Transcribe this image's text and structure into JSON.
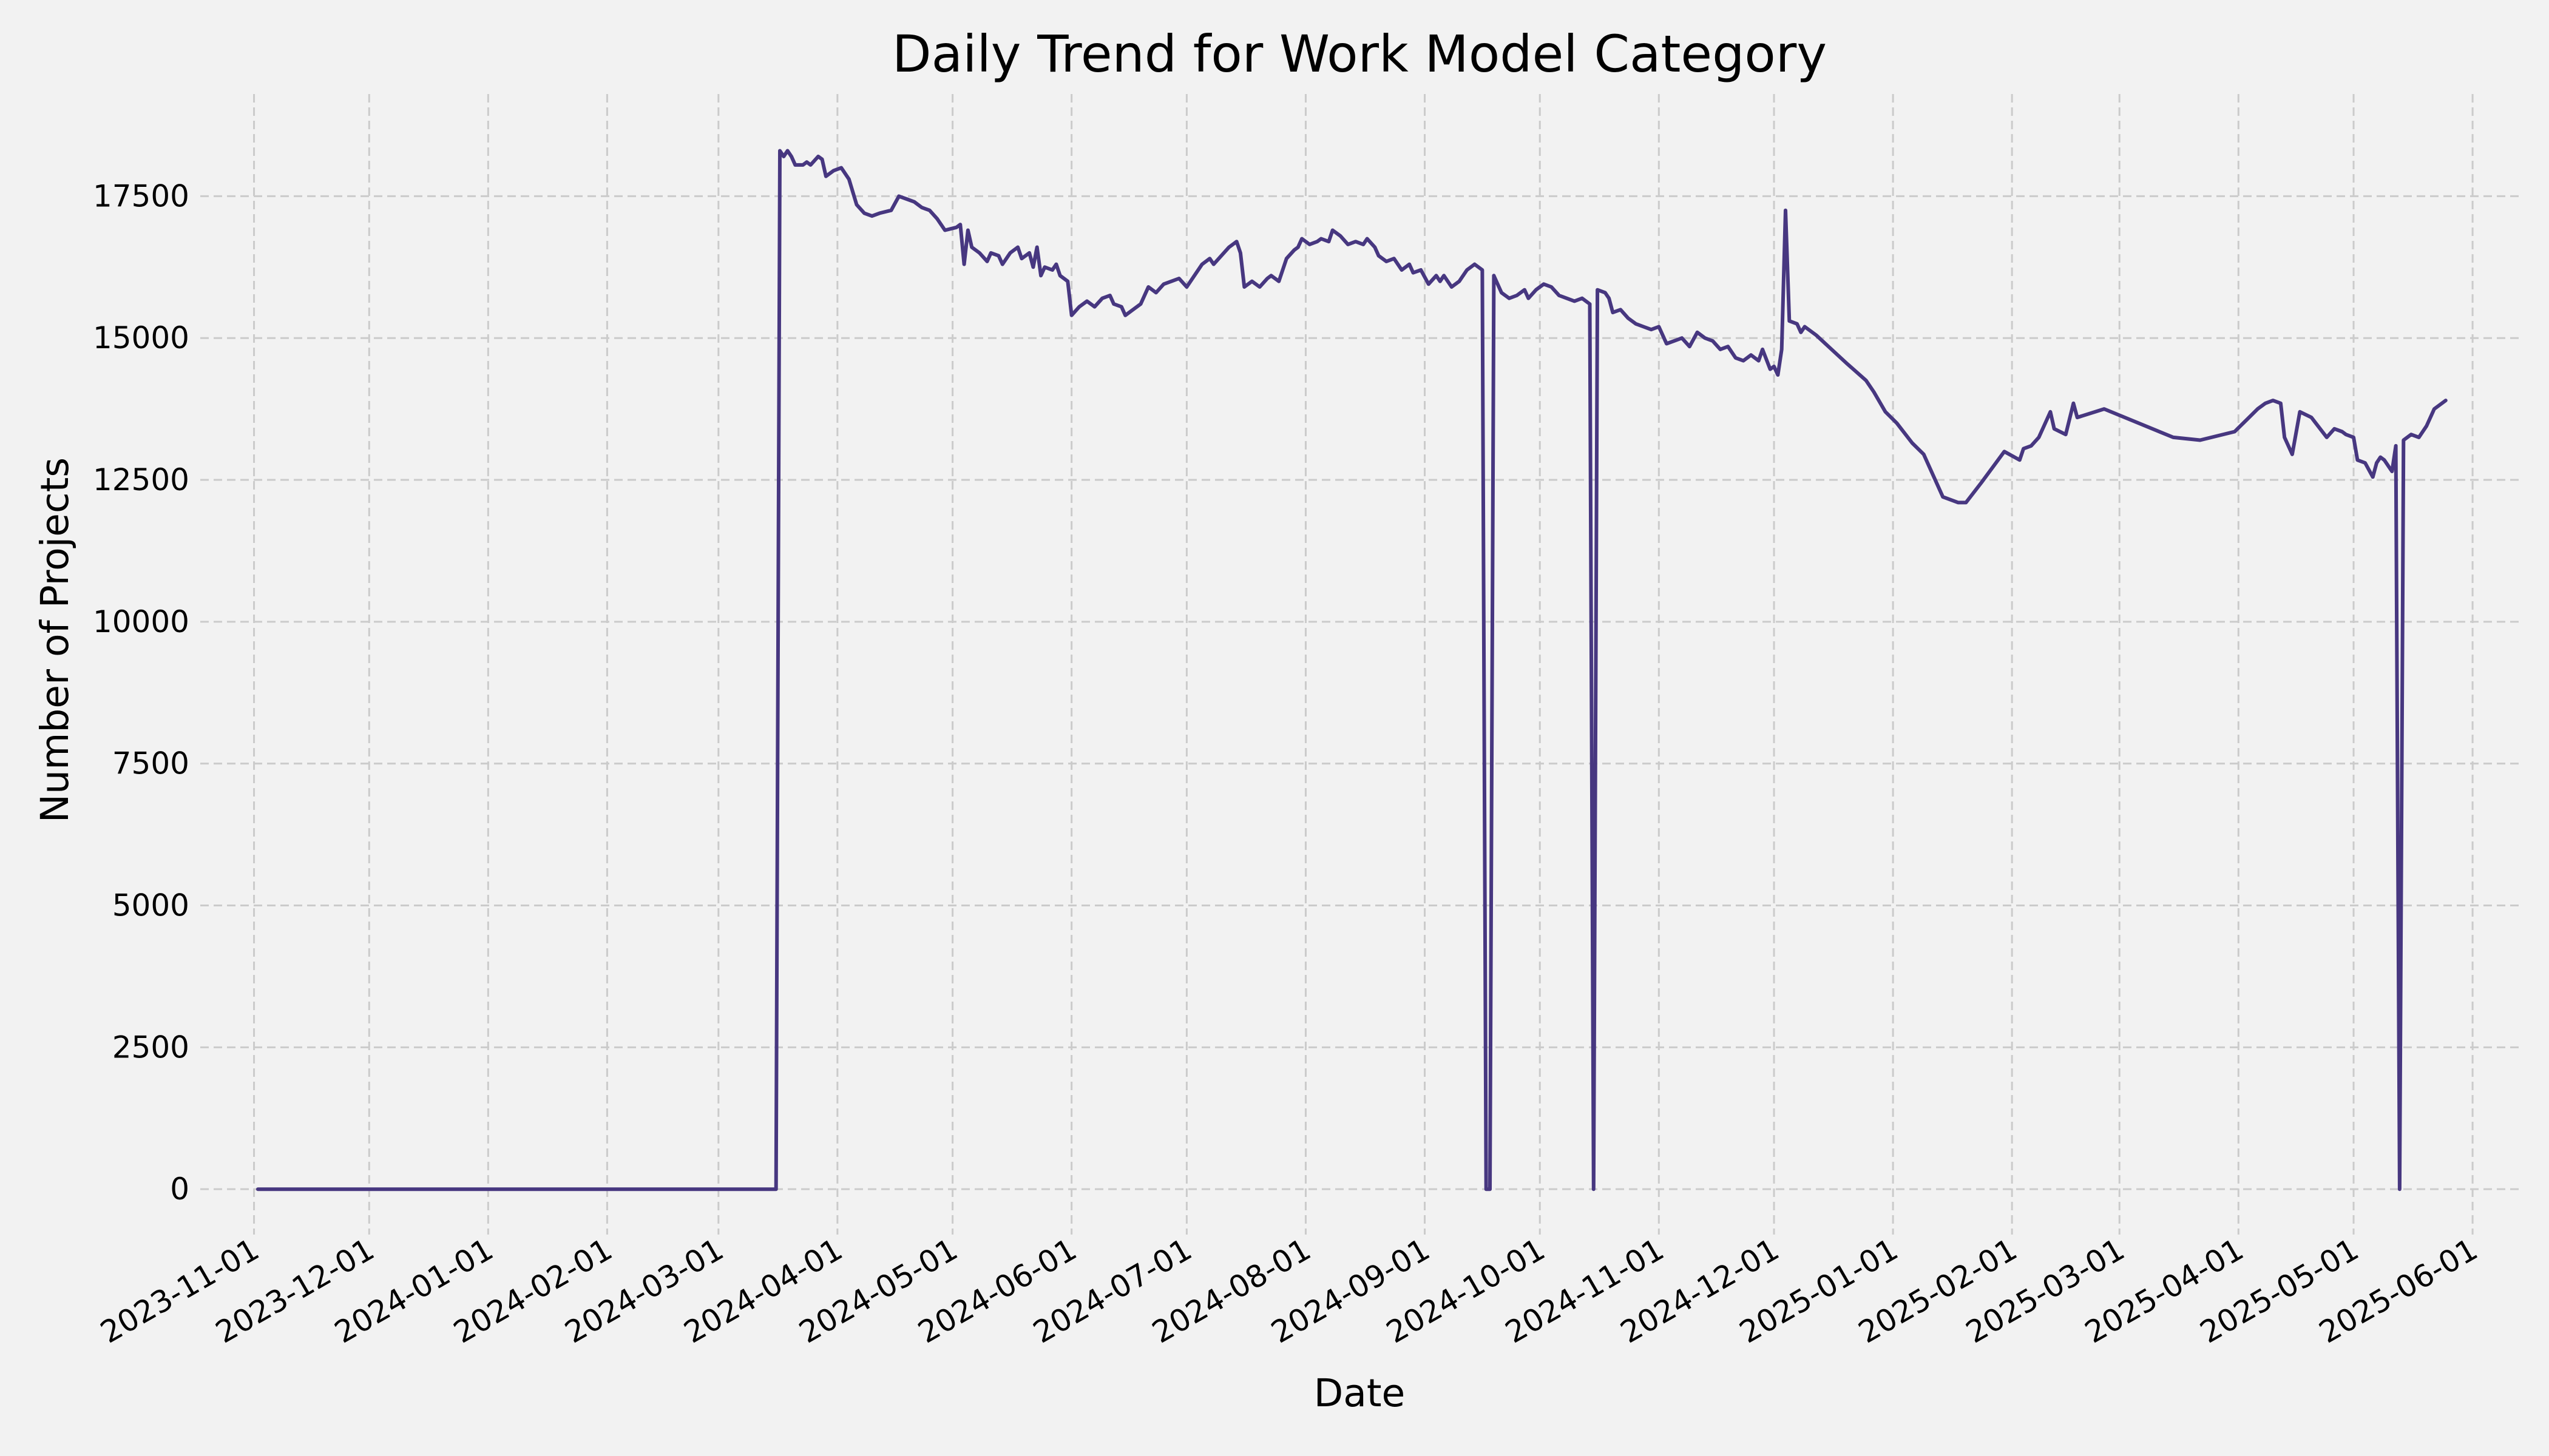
{
  "chart_data": {
    "type": "line",
    "title": "Daily Trend for Work Model Category",
    "xlabel": "Date",
    "ylabel": "Number of Projects",
    "xlim": [
      "2023-10-18",
      "2025-06-13"
    ],
    "ylim": [
      -800,
      19300
    ],
    "grid": true,
    "legend": "none",
    "x_ticks": [
      "2023-11-01",
      "2023-12-01",
      "2024-01-01",
      "2024-02-01",
      "2024-03-01",
      "2024-04-01",
      "2024-05-01",
      "2024-06-01",
      "2024-07-01",
      "2024-08-01",
      "2024-09-01",
      "2024-10-01",
      "2024-11-01",
      "2024-12-01",
      "2025-01-01",
      "2025-02-01",
      "2025-03-01",
      "2025-04-01",
      "2025-05-01",
      "2025-06-01"
    ],
    "y_ticks": [
      0,
      2500,
      5000,
      7500,
      10000,
      12500,
      15000,
      17500
    ],
    "colors": {
      "background": "#f2f2f2",
      "line": "#473780",
      "grid": "#cbcbcb"
    },
    "series": [
      {
        "points": [
          [
            "2023-11-02",
            0
          ],
          [
            "2024-03-16",
            0
          ],
          [
            "2024-03-17",
            18300
          ],
          [
            "2024-03-18",
            18200
          ],
          [
            "2024-03-19",
            18300
          ],
          [
            "2024-03-20",
            18200
          ],
          [
            "2024-03-21",
            18050
          ],
          [
            "2024-03-23",
            18050
          ],
          [
            "2024-03-24",
            18100
          ],
          [
            "2024-03-25",
            18050
          ],
          [
            "2024-03-27",
            18200
          ],
          [
            "2024-03-28",
            18150
          ],
          [
            "2024-03-29",
            17850
          ],
          [
            "2024-03-31",
            17950
          ],
          [
            "2024-04-02",
            18000
          ],
          [
            "2024-04-04",
            17800
          ],
          [
            "2024-04-06",
            17350
          ],
          [
            "2024-04-08",
            17200
          ],
          [
            "2024-04-10",
            17150
          ],
          [
            "2024-04-12",
            17200
          ],
          [
            "2024-04-15",
            17250
          ],
          [
            "2024-04-17",
            17500
          ],
          [
            "2024-04-19",
            17450
          ],
          [
            "2024-04-21",
            17400
          ],
          [
            "2024-04-23",
            17300
          ],
          [
            "2024-04-25",
            17250
          ],
          [
            "2024-04-27",
            17100
          ],
          [
            "2024-04-29",
            16900
          ],
          [
            "2024-05-02",
            16950
          ],
          [
            "2024-05-03",
            17000
          ],
          [
            "2024-05-04",
            16300
          ],
          [
            "2024-05-05",
            16900
          ],
          [
            "2024-05-06",
            16600
          ],
          [
            "2024-05-08",
            16500
          ],
          [
            "2024-05-10",
            16350
          ],
          [
            "2024-05-11",
            16500
          ],
          [
            "2024-05-13",
            16450
          ],
          [
            "2024-05-14",
            16300
          ],
          [
            "2024-05-16",
            16500
          ],
          [
            "2024-05-18",
            16600
          ],
          [
            "2024-05-19",
            16400
          ],
          [
            "2024-05-21",
            16500
          ],
          [
            "2024-05-22",
            16250
          ],
          [
            "2024-05-23",
            16600
          ],
          [
            "2024-05-24",
            16100
          ],
          [
            "2024-05-25",
            16250
          ],
          [
            "2024-05-27",
            16200
          ],
          [
            "2024-05-28",
            16300
          ],
          [
            "2024-05-29",
            16100
          ],
          [
            "2024-05-31",
            16000
          ],
          [
            "2024-06-01",
            15400
          ],
          [
            "2024-06-03",
            15550
          ],
          [
            "2024-06-05",
            15650
          ],
          [
            "2024-06-07",
            15550
          ],
          [
            "2024-06-09",
            15700
          ],
          [
            "2024-06-11",
            15750
          ],
          [
            "2024-06-12",
            15600
          ],
          [
            "2024-06-14",
            15550
          ],
          [
            "2024-06-15",
            15400
          ],
          [
            "2024-06-17",
            15500
          ],
          [
            "2024-06-19",
            15600
          ],
          [
            "2024-06-21",
            15900
          ],
          [
            "2024-06-23",
            15800
          ],
          [
            "2024-06-25",
            15950
          ],
          [
            "2024-06-27",
            16000
          ],
          [
            "2024-06-29",
            16050
          ],
          [
            "2024-07-01",
            15900
          ],
          [
            "2024-07-03",
            16100
          ],
          [
            "2024-07-05",
            16300
          ],
          [
            "2024-07-07",
            16400
          ],
          [
            "2024-07-08",
            16300
          ],
          [
            "2024-07-10",
            16450
          ],
          [
            "2024-07-12",
            16600
          ],
          [
            "2024-07-14",
            16700
          ],
          [
            "2024-07-15",
            16500
          ],
          [
            "2024-07-16",
            15900
          ],
          [
            "2024-07-18",
            16000
          ],
          [
            "2024-07-20",
            15900
          ],
          [
            "2024-07-22",
            16050
          ],
          [
            "2024-07-23",
            16100
          ],
          [
            "2024-07-25",
            16000
          ],
          [
            "2024-07-27",
            16400
          ],
          [
            "2024-07-29",
            16550
          ],
          [
            "2024-07-30",
            16600
          ],
          [
            "2024-07-31",
            16750
          ],
          [
            "2024-08-02",
            16650
          ],
          [
            "2024-08-04",
            16700
          ],
          [
            "2024-08-05",
            16750
          ],
          [
            "2024-08-07",
            16700
          ],
          [
            "2024-08-08",
            16900
          ],
          [
            "2024-08-10",
            16800
          ],
          [
            "2024-08-12",
            16650
          ],
          [
            "2024-08-14",
            16700
          ],
          [
            "2024-08-16",
            16650
          ],
          [
            "2024-08-17",
            16750
          ],
          [
            "2024-08-19",
            16600
          ],
          [
            "2024-08-20",
            16450
          ],
          [
            "2024-08-22",
            16350
          ],
          [
            "2024-08-24",
            16400
          ],
          [
            "2024-08-26",
            16200
          ],
          [
            "2024-08-28",
            16300
          ],
          [
            "2024-08-29",
            16150
          ],
          [
            "2024-08-31",
            16200
          ],
          [
            "2024-09-02",
            15950
          ],
          [
            "2024-09-04",
            16100
          ],
          [
            "2024-09-05",
            16000
          ],
          [
            "2024-09-06",
            16100
          ],
          [
            "2024-09-08",
            15900
          ],
          [
            "2024-09-10",
            16000
          ],
          [
            "2024-09-12",
            16200
          ],
          [
            "2024-09-14",
            16300
          ],
          [
            "2024-09-16",
            16200
          ],
          [
            "2024-09-17",
            0
          ],
          [
            "2024-09-18",
            0
          ],
          [
            "2024-09-19",
            16100
          ],
          [
            "2024-09-21",
            15800
          ],
          [
            "2024-09-23",
            15700
          ],
          [
            "2024-09-25",
            15750
          ],
          [
            "2024-09-27",
            15850
          ],
          [
            "2024-09-28",
            15700
          ],
          [
            "2024-09-30",
            15850
          ],
          [
            "2024-10-02",
            15950
          ],
          [
            "2024-10-04",
            15900
          ],
          [
            "2024-10-06",
            15750
          ],
          [
            "2024-10-08",
            15700
          ],
          [
            "2024-10-10",
            15650
          ],
          [
            "2024-10-12",
            15700
          ],
          [
            "2024-10-14",
            15600
          ],
          [
            "2024-10-15",
            0
          ],
          [
            "2024-10-16",
            15850
          ],
          [
            "2024-10-18",
            15800
          ],
          [
            "2024-10-19",
            15700
          ],
          [
            "2024-10-20",
            15450
          ],
          [
            "2024-10-22",
            15500
          ],
          [
            "2024-10-24",
            15350
          ],
          [
            "2024-10-26",
            15250
          ],
          [
            "2024-10-28",
            15200
          ],
          [
            "2024-10-30",
            15150
          ],
          [
            "2024-11-01",
            15200
          ],
          [
            "2024-11-03",
            14900
          ],
          [
            "2024-11-05",
            14950
          ],
          [
            "2024-11-07",
            15000
          ],
          [
            "2024-11-09",
            14850
          ],
          [
            "2024-11-11",
            15100
          ],
          [
            "2024-11-13",
            15000
          ],
          [
            "2024-11-15",
            14950
          ],
          [
            "2024-11-17",
            14800
          ],
          [
            "2024-11-19",
            14850
          ],
          [
            "2024-11-21",
            14650
          ],
          [
            "2024-11-23",
            14600
          ],
          [
            "2024-11-25",
            14700
          ],
          [
            "2024-11-27",
            14600
          ],
          [
            "2024-11-28",
            14800
          ],
          [
            "2024-11-30",
            14450
          ],
          [
            "2024-12-01",
            14500
          ],
          [
            "2024-12-02",
            14350
          ],
          [
            "2024-12-03",
            14800
          ],
          [
            "2024-12-04",
            17250
          ],
          [
            "2024-12-05",
            15300
          ],
          [
            "2024-12-07",
            15250
          ],
          [
            "2024-12-08",
            15100
          ],
          [
            "2024-12-09",
            15200
          ],
          [
            "2024-12-12",
            15050
          ],
          [
            "2024-12-16",
            14800
          ],
          [
            "2024-12-20",
            14550
          ],
          [
            "2024-12-25",
            14250
          ],
          [
            "2024-12-27",
            14050
          ],
          [
            "2024-12-30",
            13700
          ],
          [
            "2025-01-02",
            13500
          ],
          [
            "2025-01-06",
            13150
          ],
          [
            "2025-01-09",
            12950
          ],
          [
            "2025-01-14",
            12200
          ],
          [
            "2025-01-18",
            12100
          ],
          [
            "2025-01-20",
            12100
          ],
          [
            "2025-01-24",
            12450
          ],
          [
            "2025-01-30",
            13000
          ],
          [
            "2025-02-03",
            12850
          ],
          [
            "2025-02-04",
            13050
          ],
          [
            "2025-02-06",
            13100
          ],
          [
            "2025-02-08",
            13250
          ],
          [
            "2025-02-10",
            13550
          ],
          [
            "2025-02-11",
            13700
          ],
          [
            "2025-02-12",
            13400
          ],
          [
            "2025-02-15",
            13300
          ],
          [
            "2025-02-17",
            13850
          ],
          [
            "2025-02-18",
            13600
          ],
          [
            "2025-02-25",
            13750
          ],
          [
            "2025-03-15",
            13250
          ],
          [
            "2025-03-22",
            13200
          ],
          [
            "2025-03-31",
            13350
          ],
          [
            "2025-04-03",
            13550
          ],
          [
            "2025-04-06",
            13750
          ],
          [
            "2025-04-08",
            13850
          ],
          [
            "2025-04-10",
            13900
          ],
          [
            "2025-04-12",
            13850
          ],
          [
            "2025-04-13",
            13250
          ],
          [
            "2025-04-15",
            12950
          ],
          [
            "2025-04-17",
            13700
          ],
          [
            "2025-04-20",
            13600
          ],
          [
            "2025-04-24",
            13250
          ],
          [
            "2025-04-26",
            13400
          ],
          [
            "2025-04-28",
            13350
          ],
          [
            "2025-04-29",
            13300
          ],
          [
            "2025-05-01",
            13250
          ],
          [
            "2025-05-02",
            12850
          ],
          [
            "2025-05-04",
            12800
          ],
          [
            "2025-05-06",
            12550
          ],
          [
            "2025-05-07",
            12800
          ],
          [
            "2025-05-08",
            12900
          ],
          [
            "2025-05-09",
            12850
          ],
          [
            "2025-05-11",
            12650
          ],
          [
            "2025-05-12",
            13100
          ],
          [
            "2025-05-13",
            0
          ],
          [
            "2025-05-14",
            13200
          ],
          [
            "2025-05-16",
            13300
          ],
          [
            "2025-05-18",
            13250
          ],
          [
            "2025-05-20",
            13450
          ],
          [
            "2025-05-22",
            13750
          ],
          [
            "2025-05-25",
            13900
          ]
        ]
      }
    ]
  }
}
